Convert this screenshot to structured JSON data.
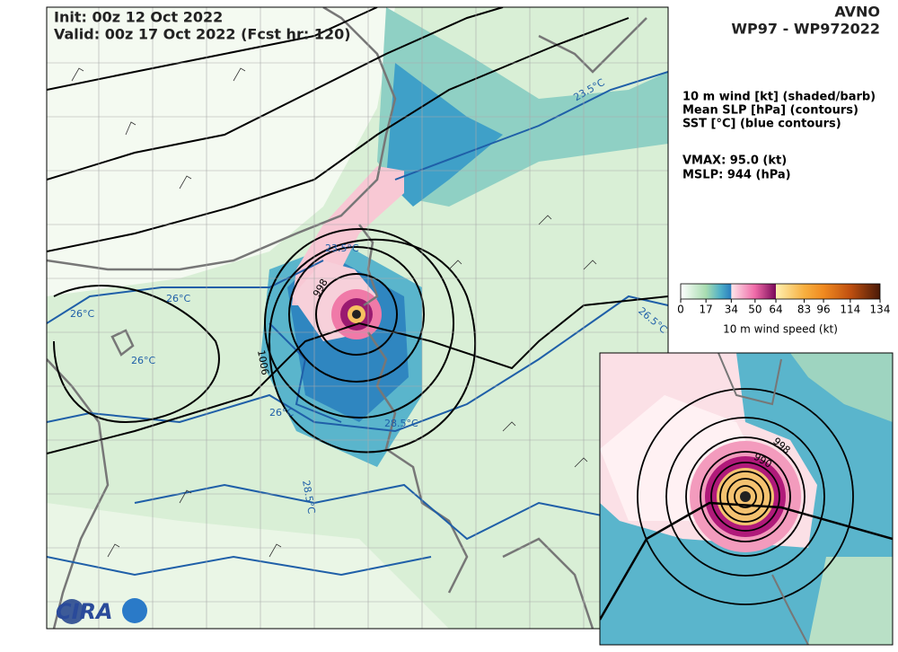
{
  "header": {
    "init": "Init:   00z 12 Oct 2022",
    "valid": "Valid: 00z 17 Oct 2022 (Fcst hr: 120)",
    "model": "AVNO",
    "storm": "WP97 - WP972022"
  },
  "legend": {
    "lines": [
      "10 m wind [kt] (shaded/barb)",
      "Mean SLP [hPa] (contours)",
      "SST [°C] (blue contours)"
    ],
    "vmax": "VMAX:  95.0 (kt)",
    "mslp": "MSLP:  944 (hPa)"
  },
  "colorbar": {
    "label": "10 m wind speed (kt)",
    "lim": [
      0,
      134
    ],
    "ticks": [
      0,
      17,
      34,
      50,
      64,
      83,
      96,
      114,
      134
    ]
  },
  "map": {
    "contour_labels": [
      "998",
      "1006",
      "23.5°C",
      "26°C",
      "26°C",
      "26°C",
      "26°C",
      "28.5°C",
      "28.5°C",
      "23.5°C",
      "26.5°C"
    ],
    "inset_labels": [
      "990",
      "998"
    ],
    "logo": "CIRA"
  }
}
